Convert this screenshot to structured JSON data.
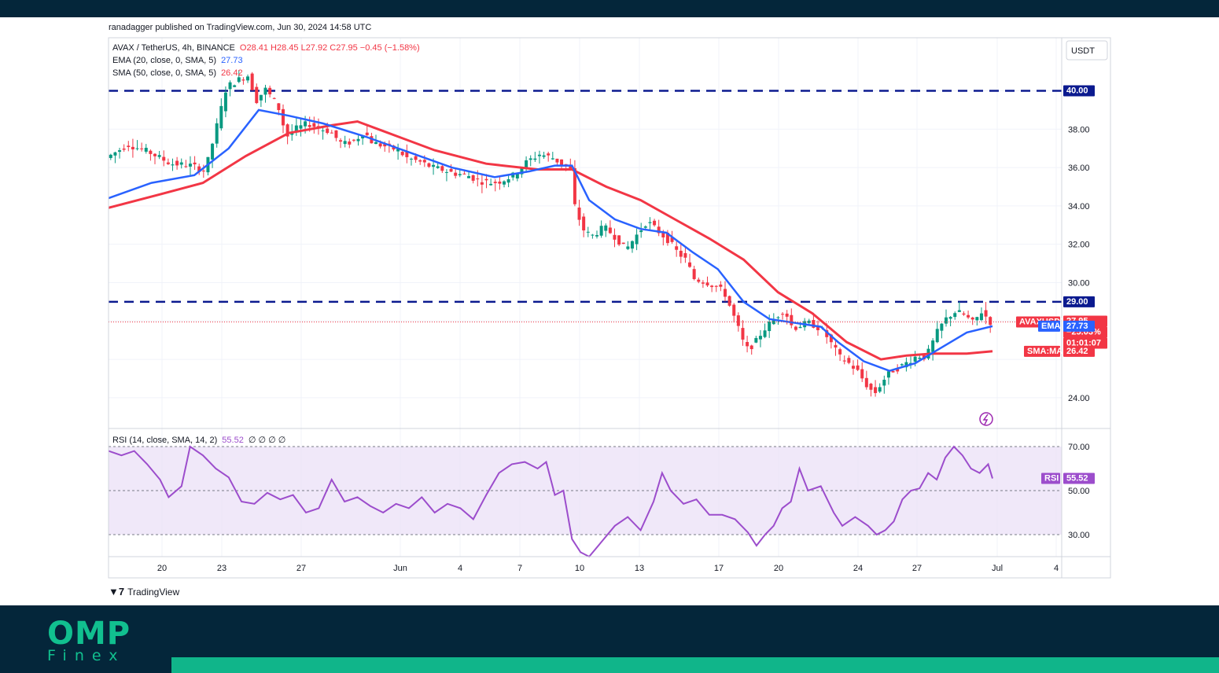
{
  "header": {
    "published": "ranadagger published on TradingView.com, Jun 30, 2024 14:58 UTC"
  },
  "legend": {
    "symbol": "AVAX / TetherUS, 4h, BINANCE",
    "ohlc": "O28.41  H28.45  L27.92  C27.95  −0.45 (−1.58%)",
    "ema_label": "EMA (20, close, 0, SMA, 5)",
    "ema_value": "27.73",
    "sma_label": "SMA (50, close, 0, SMA, 5)",
    "sma_value": "26.42",
    "rsi_label": "RSI (14, close, SMA, 14, 2)",
    "rsi_value": "55.52",
    "rsi_extra": "∅ ∅ ∅ ∅"
  },
  "currency_label": "USDT",
  "badges": {
    "resistance_high": "40.00",
    "resistance_mid": "29.00",
    "price_symbol": "AVAXUSDT",
    "price_value": "27.95",
    "price_change": "−25.03%",
    "countdown": "01:01:07",
    "ema_name": "EMA",
    "ema_value": "27.73",
    "sma_name": "SMA:MA",
    "sma_value": "26.42",
    "rsi_name": "RSI",
    "rsi_value": "55.52"
  },
  "tv_brand": "TradingView",
  "brand": {
    "omp": "OMP",
    "finex": "Finex"
  },
  "colors": {
    "ema": "#2962ff",
    "sma": "#f23645",
    "up": "#089981",
    "down": "#f23645",
    "rsi": "#9c4dcc",
    "level": "#0b1a8f"
  },
  "chart_data": {
    "type": "candlestick",
    "price_axis": {
      "ticks": [
        24,
        26,
        28,
        30,
        32,
        34,
        36,
        38,
        40
      ],
      "labels": [
        "24.00",
        "",
        "",
        "30.00",
        "32.00",
        "34.00",
        "36.00",
        "38.00",
        ""
      ]
    },
    "time_axis": {
      "labels": [
        "20",
        "23",
        "27",
        "Jun",
        "4",
        "7",
        "10",
        "13",
        "17",
        "20",
        "24",
        "27",
        "Jul",
        "4"
      ]
    },
    "horizontal_levels": [
      40.0,
      29.0
    ],
    "last_price": 27.95,
    "rsi_axis": {
      "ticks": [
        30,
        50,
        70
      ],
      "labels": [
        "30.00",
        "50.00",
        "70.00"
      ],
      "band": [
        30,
        70
      ]
    },
    "price_path": [
      [
        0,
        36.5
      ],
      [
        5,
        37.2
      ],
      [
        10,
        36.8
      ],
      [
        15,
        36.2
      ],
      [
        20,
        36.1
      ],
      [
        23,
        35.8
      ],
      [
        25,
        37.5
      ],
      [
        28,
        40.2
      ],
      [
        31,
        40.6
      ],
      [
        33,
        40.8
      ],
      [
        35,
        39.5
      ],
      [
        37,
        40.1
      ],
      [
        40,
        39.2
      ],
      [
        42,
        37.6
      ],
      [
        44,
        38.0
      ],
      [
        47,
        38.3
      ],
      [
        50,
        38.0
      ],
      [
        52,
        37.9
      ],
      [
        55,
        37.2
      ],
      [
        58,
        37.4
      ],
      [
        60,
        37.9
      ],
      [
        62,
        37.3
      ],
      [
        65,
        37.1
      ],
      [
        68,
        36.9
      ],
      [
        70,
        36.5
      ],
      [
        73,
        36.3
      ],
      [
        76,
        36.0
      ],
      [
        78,
        35.9
      ],
      [
        81,
        35.7
      ],
      [
        84,
        35.6
      ],
      [
        87,
        35.3
      ],
      [
        90,
        35.2
      ],
      [
        92,
        35.3
      ],
      [
        95,
        35.6
      ],
      [
        98,
        36.3
      ],
      [
        101,
        36.7
      ],
      [
        104,
        36.5
      ],
      [
        106,
        36.2
      ],
      [
        108,
        36.1
      ],
      [
        109,
        34.1
      ],
      [
        111,
        32.8
      ],
      [
        113,
        32.4
      ],
      [
        116,
        32.9
      ],
      [
        119,
        32.3
      ],
      [
        121,
        31.7
      ],
      [
        123,
        32.3
      ],
      [
        126,
        33.2
      ],
      [
        128,
        32.8
      ],
      [
        131,
        32.2
      ],
      [
        133,
        31.6
      ],
      [
        135,
        31.2
      ],
      [
        137,
        30.2
      ],
      [
        140,
        30.0
      ],
      [
        142,
        29.8
      ],
      [
        144,
        29.5
      ],
      [
        147,
        27.8
      ],
      [
        149,
        26.5
      ],
      [
        151,
        26.8
      ],
      [
        153,
        27.5
      ],
      [
        156,
        28.2
      ],
      [
        158,
        28.6
      ],
      [
        160,
        27.6
      ],
      [
        162,
        27.8
      ],
      [
        164,
        27.9
      ],
      [
        167,
        27.5
      ],
      [
        169,
        26.8
      ],
      [
        171,
        26.1
      ],
      [
        173,
        25.8
      ],
      [
        175,
        25.4
      ],
      [
        177,
        24.7
      ],
      [
        179,
        24.2
      ],
      [
        181,
        24.9
      ],
      [
        183,
        25.4
      ],
      [
        185,
        25.6
      ],
      [
        187,
        25.9
      ],
      [
        189,
        26.2
      ],
      [
        191,
        26.1
      ],
      [
        194,
        27.6
      ],
      [
        196,
        28.2
      ],
      [
        198,
        28.5
      ],
      [
        200,
        28.3
      ],
      [
        202,
        27.9
      ],
      [
        204,
        28.5
      ],
      [
        206,
        27.95
      ]
    ],
    "ema_20": [
      [
        0,
        34.4
      ],
      [
        10,
        35.2
      ],
      [
        20,
        35.6
      ],
      [
        28,
        37.0
      ],
      [
        35,
        39.0
      ],
      [
        42,
        38.7
      ],
      [
        50,
        38.3
      ],
      [
        60,
        37.6
      ],
      [
        70,
        36.8
      ],
      [
        80,
        36.0
      ],
      [
        90,
        35.5
      ],
      [
        98,
        35.8
      ],
      [
        104,
        36.1
      ],
      [
        108,
        36.1
      ],
      [
        112,
        34.3
      ],
      [
        118,
        33.3
      ],
      [
        124,
        32.8
      ],
      [
        130,
        32.6
      ],
      [
        136,
        31.6
      ],
      [
        142,
        30.7
      ],
      [
        148,
        29.0
      ],
      [
        154,
        28.1
      ],
      [
        160,
        27.9
      ],
      [
        166,
        27.7
      ],
      [
        170,
        26.9
      ],
      [
        176,
        25.9
      ],
      [
        182,
        25.4
      ],
      [
        188,
        25.8
      ],
      [
        194,
        26.6
      ],
      [
        200,
        27.4
      ],
      [
        206,
        27.73
      ]
    ],
    "sma_50": [
      [
        0,
        33.9
      ],
      [
        12,
        34.6
      ],
      [
        22,
        35.2
      ],
      [
        32,
        36.6
      ],
      [
        42,
        37.8
      ],
      [
        52,
        38.2
      ],
      [
        58,
        38.4
      ],
      [
        64,
        37.9
      ],
      [
        76,
        36.9
      ],
      [
        88,
        36.2
      ],
      [
        100,
        35.9
      ],
      [
        108,
        35.9
      ],
      [
        116,
        35.0
      ],
      [
        124,
        34.3
      ],
      [
        132,
        33.3
      ],
      [
        140,
        32.3
      ],
      [
        148,
        31.2
      ],
      [
        156,
        29.5
      ],
      [
        164,
        28.4
      ],
      [
        172,
        26.9
      ],
      [
        180,
        26.0
      ],
      [
        186,
        26.2
      ],
      [
        192,
        26.3
      ],
      [
        200,
        26.3
      ],
      [
        206,
        26.42
      ]
    ],
    "rsi": [
      [
        0,
        68
      ],
      [
        3,
        66
      ],
      [
        6,
        68
      ],
      [
        9,
        62
      ],
      [
        12,
        55
      ],
      [
        14,
        47
      ],
      [
        17,
        52
      ],
      [
        19,
        70
      ],
      [
        22,
        66
      ],
      [
        25,
        60
      ],
      [
        28,
        56
      ],
      [
        31,
        45
      ],
      [
        34,
        44
      ],
      [
        37,
        49
      ],
      [
        40,
        46
      ],
      [
        43,
        48
      ],
      [
        46,
        40
      ],
      [
        49,
        42
      ],
      [
        52,
        55
      ],
      [
        55,
        45
      ],
      [
        58,
        47
      ],
      [
        61,
        43
      ],
      [
        64,
        40
      ],
      [
        67,
        44
      ],
      [
        70,
        42
      ],
      [
        73,
        47
      ],
      [
        76,
        40
      ],
      [
        79,
        44
      ],
      [
        82,
        42
      ],
      [
        85,
        37
      ],
      [
        88,
        48
      ],
      [
        91,
        58
      ],
      [
        94,
        62
      ],
      [
        97,
        63
      ],
      [
        100,
        60
      ],
      [
        102,
        63
      ],
      [
        104,
        48
      ],
      [
        106,
        50
      ],
      [
        108,
        28
      ],
      [
        110,
        22
      ],
      [
        112,
        20
      ],
      [
        115,
        27
      ],
      [
        118,
        34
      ],
      [
        121,
        38
      ],
      [
        124,
        32
      ],
      [
        127,
        45
      ],
      [
        129,
        58
      ],
      [
        131,
        50
      ],
      [
        134,
        44
      ],
      [
        137,
        46
      ],
      [
        140,
        39
      ],
      [
        143,
        39
      ],
      [
        146,
        37
      ],
      [
        149,
        31
      ],
      [
        151,
        25
      ],
      [
        153,
        30
      ],
      [
        155,
        34
      ],
      [
        157,
        42
      ],
      [
        159,
        45
      ],
      [
        161,
        60
      ],
      [
        163,
        50
      ],
      [
        166,
        52
      ],
      [
        169,
        40
      ],
      [
        171,
        34
      ],
      [
        174,
        38
      ],
      [
        177,
        34
      ],
      [
        179,
        30
      ],
      [
        181,
        32
      ],
      [
        183,
        36
      ],
      [
        185,
        46
      ],
      [
        187,
        50
      ],
      [
        189,
        51
      ],
      [
        191,
        58
      ],
      [
        193,
        55
      ],
      [
        195,
        65
      ],
      [
        197,
        70
      ],
      [
        199,
        66
      ],
      [
        201,
        60
      ],
      [
        203,
        58
      ],
      [
        205,
        62
      ],
      [
        206,
        55.5
      ]
    ]
  }
}
